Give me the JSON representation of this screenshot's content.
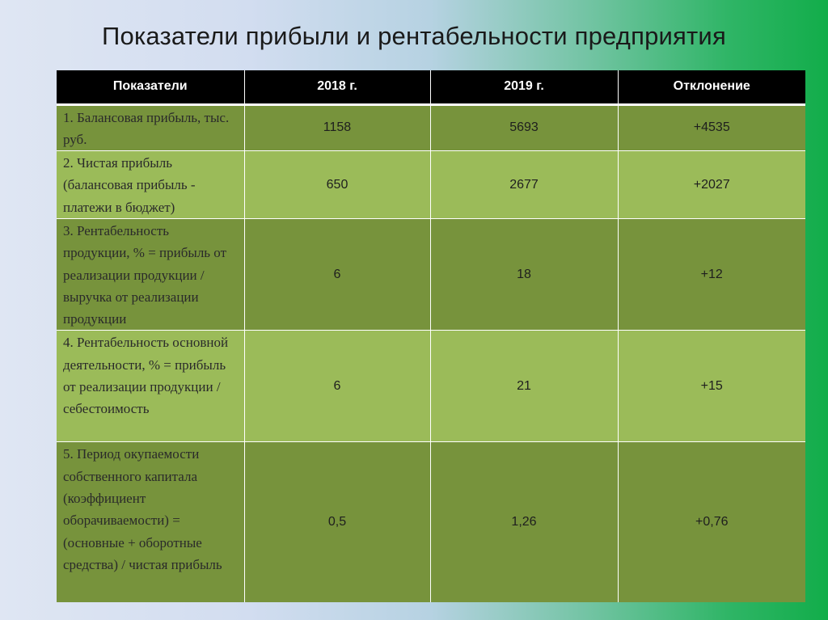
{
  "title": "Показатели прибыли и рентабельности предприятия",
  "table": {
    "headers": [
      "Показатели",
      "2018 г.",
      "2019 г.",
      "Отклонение"
    ],
    "rows": [
      {
        "label": "1. Балансовая прибыль, тыс. руб.",
        "y2018": "1158",
        "y2019": "5693",
        "deviation": "+4535"
      },
      {
        "label": "2. Чистая прибыль (балансовая прибыль - платежи в бюджет)",
        "y2018": "650",
        "y2019": "2677",
        "deviation": "+2027"
      },
      {
        "label": "3. Рентабельность продукции, % = прибыль от реализации продукции / выручка от реализации продукции",
        "y2018": "6",
        "y2019": "18",
        "deviation": "+12"
      },
      {
        "label": "4. Рентабельность основной деятельности, % = прибыль от реализации продукции / себестоимость",
        "y2018": "6",
        "y2019": "21",
        "deviation": "+15"
      },
      {
        "label": "5. Период окупаемости собственного капитала (коэффициент оборачиваемости) = (основные + оборотные средства) / чистая прибыль",
        "y2018": "0,5",
        "y2019": "1,26",
        "deviation": "+0,76"
      }
    ]
  },
  "colors": {
    "header_bg": "#000000",
    "row_dark": "#77933c",
    "row_light": "#9bbb59",
    "background_left": "#dfe6f3",
    "background_right": "#12ad4a"
  }
}
